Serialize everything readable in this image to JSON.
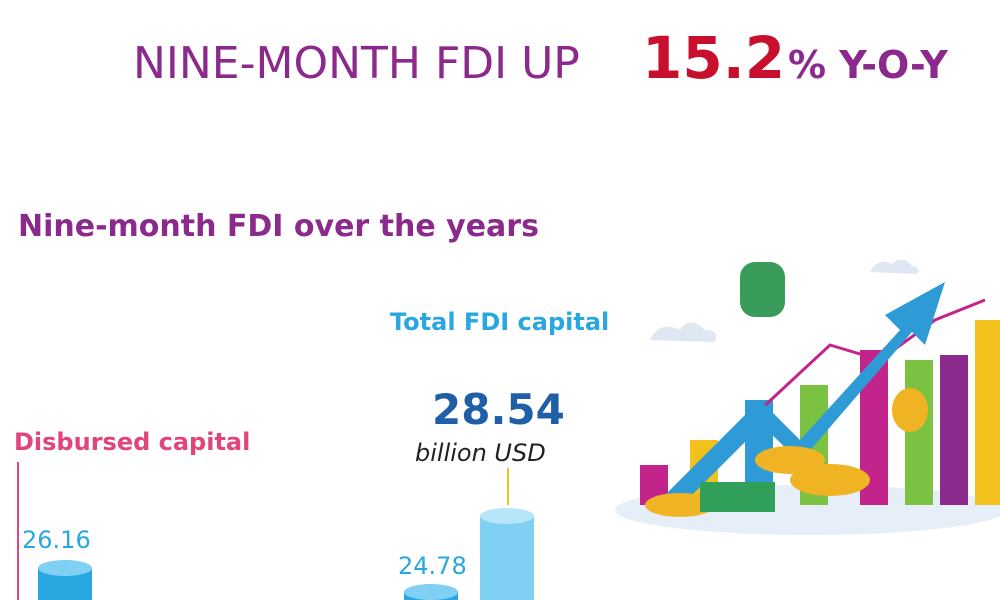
{
  "title": {
    "main": "NINE-MONTH FDI UP",
    "highlight": 15.2,
    "suffix": "% Y-O-Y"
  },
  "subtitle": "Nine-month FDI over the years",
  "total": {
    "label": "Total FDI capital",
    "value": 28.54,
    "unit": "billion USD"
  },
  "disbursed": {
    "label": "Disbursed capital"
  },
  "bars": [
    {
      "value": 26.16
    },
    {
      "value": 24.78
    }
  ]
}
